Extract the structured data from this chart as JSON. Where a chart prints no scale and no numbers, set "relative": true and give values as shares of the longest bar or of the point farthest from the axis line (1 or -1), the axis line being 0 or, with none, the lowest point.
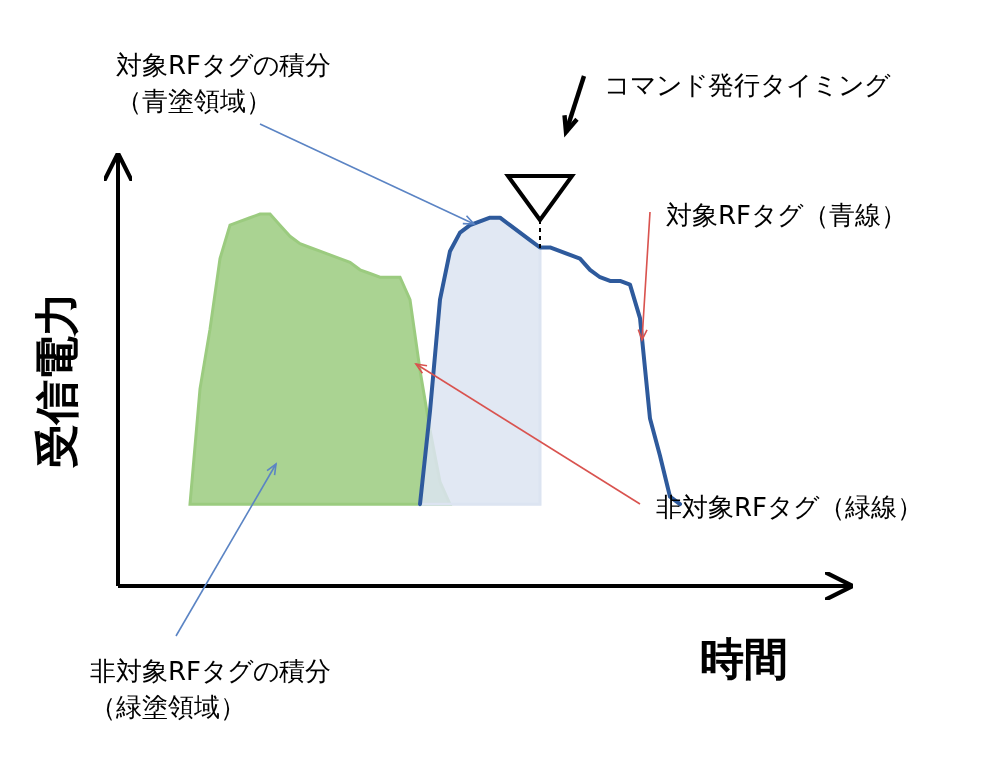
{
  "chart_data": {
    "type": "area",
    "relative": true,
    "ylabel": "受信電力",
    "xlabel": "時間",
    "categories": [
      null,
      null,
      null,
      null,
      null,
      null,
      null,
      null,
      null,
      null,
      null,
      null,
      null,
      null,
      null,
      null,
      null,
      null,
      null,
      null,
      null,
      null,
      null,
      null,
      null,
      null,
      null,
      null,
      null,
      null,
      null,
      null,
      null,
      null,
      null,
      null,
      null,
      null,
      null,
      null,
      null,
      null,
      null,
      null,
      null,
      null,
      null,
      null,
      null,
      null,
      null
    ],
    "series": [
      {
        "name": "非対象RFタグ（緑線）",
        "color": "#9bcb7f",
        "values": [
          null,
          0.22,
          0.53,
          0.69,
          0.88,
          0.97,
          0.98,
          0.99,
          1.0,
          1.0,
          0.97,
          0.94,
          0.92,
          0.91,
          0.9,
          0.89,
          0.88,
          0.87,
          0.85,
          0.84,
          0.83,
          0.83,
          0.83,
          0.77,
          0.58,
          0.42,
          0.28,
          0.22,
          null,
          null,
          null,
          null,
          null,
          null,
          null,
          null,
          null,
          null,
          null,
          null,
          null,
          null,
          null,
          null,
          null,
          null,
          null,
          null,
          null,
          null,
          null
        ]
      },
      {
        "type": "area",
        "color": "#dce4f1",
        "values": [
          null,
          null,
          null,
          null,
          null,
          null,
          null,
          null,
          null,
          null,
          null,
          null,
          null,
          null,
          null,
          null,
          null,
          null,
          null,
          null,
          null,
          null,
          null,
          null,
          0.22,
          0.47,
          0.77,
          0.9,
          0.95,
          0.97,
          0.98,
          0.99,
          0.99,
          0.97,
          0.95,
          0.93,
          0.91,
          null,
          null,
          null,
          null,
          null,
          null,
          null,
          null,
          null,
          null,
          null,
          null,
          null,
          null
        ]
      },
      {
        "name": "対象RFタグ（青線）",
        "type": "line",
        "color": "#2e5a9c",
        "values": [
          null,
          null,
          null,
          null,
          null,
          null,
          null,
          null,
          null,
          null,
          null,
          null,
          null,
          null,
          null,
          null,
          null,
          null,
          null,
          null,
          null,
          null,
          null,
          null,
          0.22,
          0.47,
          0.77,
          0.9,
          0.95,
          0.97,
          0.98,
          0.99,
          0.99,
          0.97,
          0.95,
          0.93,
          0.91,
          0.91,
          0.9,
          0.89,
          0.88,
          0.85,
          0.83,
          0.82,
          0.82,
          0.81,
          0.72,
          0.45,
          0.35,
          0.24,
          0.22
        ]
      }
    ],
    "annotations": [
      "対象RFタグの積分",
      "（青塗領域）",
      "コマンド発行タイミング",
      "非対象RFタグの積分",
      "（緑塗領域）"
    ]
  }
}
